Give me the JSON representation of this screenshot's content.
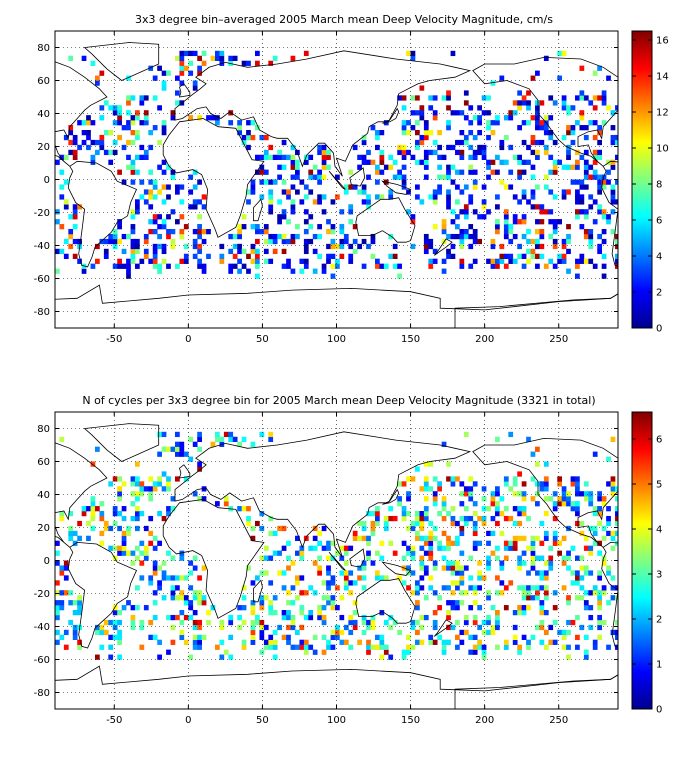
{
  "chart_data": [
    {
      "type": "heatmap",
      "title": "3x3 degree bin–averaged 2005 March mean Deep Velocity Magnitude, cm/s",
      "xlabel": "",
      "ylabel": "",
      "xlim": [
        -90,
        290
      ],
      "ylim": [
        -90,
        90
      ],
      "x_ticks": [
        -50,
        0,
        50,
        100,
        150,
        200,
        250
      ],
      "y_ticks": [
        80,
        60,
        40,
        20,
        0,
        -20,
        -40,
        -60,
        -80
      ],
      "grid": true,
      "colorbar": {
        "min": 0,
        "max": 16.5,
        "ticks": [
          0,
          2,
          4,
          6,
          8,
          10,
          12,
          14,
          16
        ]
      },
      "bin_size_deg": 3,
      "mode": "velocity"
    },
    {
      "type": "heatmap",
      "title": "N of cycles per 3x3 degree bin for 2005 March mean Deep Velocity Magnitude (3321 in total)",
      "xlabel": "",
      "ylabel": "",
      "xlim": [
        -90,
        290
      ],
      "ylim": [
        -90,
        90
      ],
      "x_ticks": [
        -50,
        0,
        50,
        100,
        150,
        200,
        250
      ],
      "y_ticks": [
        80,
        60,
        40,
        20,
        0,
        -20,
        -40,
        -60,
        -80
      ],
      "grid": true,
      "colorbar": {
        "min": 0,
        "max": 6.6,
        "ticks": [
          0,
          1,
          2,
          3,
          4,
          5,
          6
        ]
      },
      "bin_size_deg": 3,
      "mode": "count"
    }
  ]
}
